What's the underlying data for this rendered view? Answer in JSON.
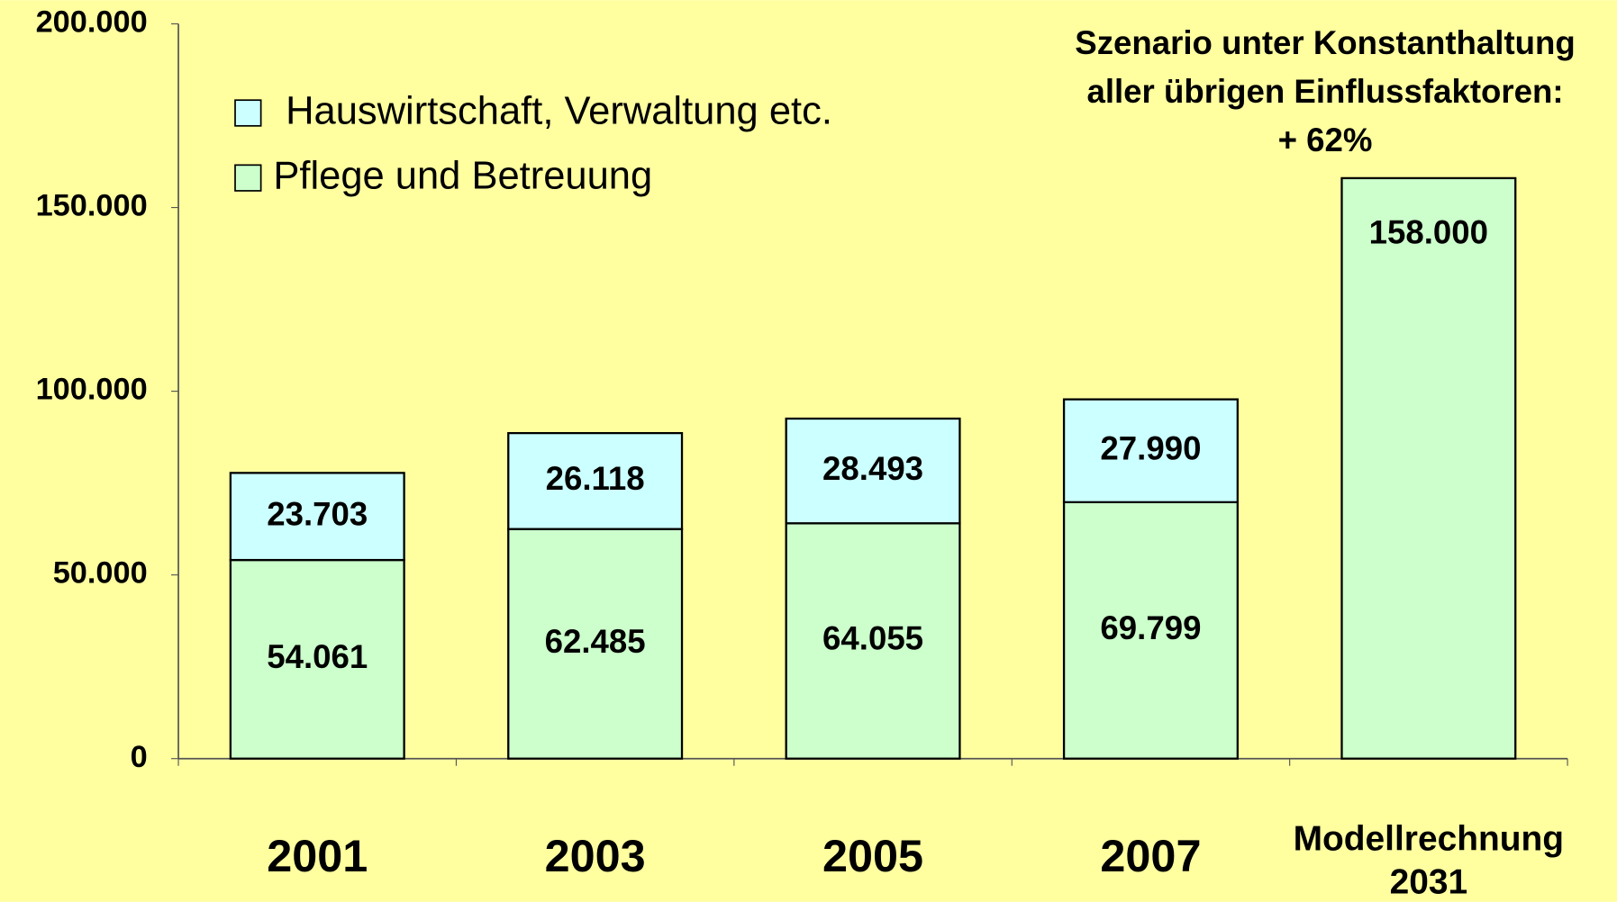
{
  "chart_data": {
    "type": "stacked_bar",
    "categories": [
      "2001",
      "2003",
      "2005",
      "2007",
      "Modellrechnung 2031"
    ],
    "series": [
      {
        "name": "Pflege und Betreuung",
        "color": "#ccffcc",
        "values": [
          54061,
          62485,
          64055,
          69799,
          158000
        ],
        "value_labels": [
          "54.061",
          "62.485",
          "64.055",
          "69.799",
          "158.000"
        ]
      },
      {
        "name": "Hauswirtschaft, Verwaltung etc.",
        "color": "#ccffff",
        "values": [
          23703,
          26118,
          28493,
          27990,
          null
        ],
        "value_labels": [
          "23.703",
          "26.118",
          "28.493",
          "27.990",
          null
        ]
      }
    ],
    "ylim": [
      0,
      200000
    ],
    "yticks": [
      0,
      {
        "value": 50000,
        "label": "50.000"
      },
      {
        "value": 100000,
        "label": "100.000"
      },
      {
        "value": 150000,
        "label": "150.000"
      },
      {
        "value": 200000,
        "label": "200.000"
      }
    ],
    "annotation": [
      "Szenario unter Konstanthaltung",
      "aller übrigen Einflussfaktoren:",
      "+ 62%"
    ],
    "background": "#ffffa0",
    "grid": false
  }
}
